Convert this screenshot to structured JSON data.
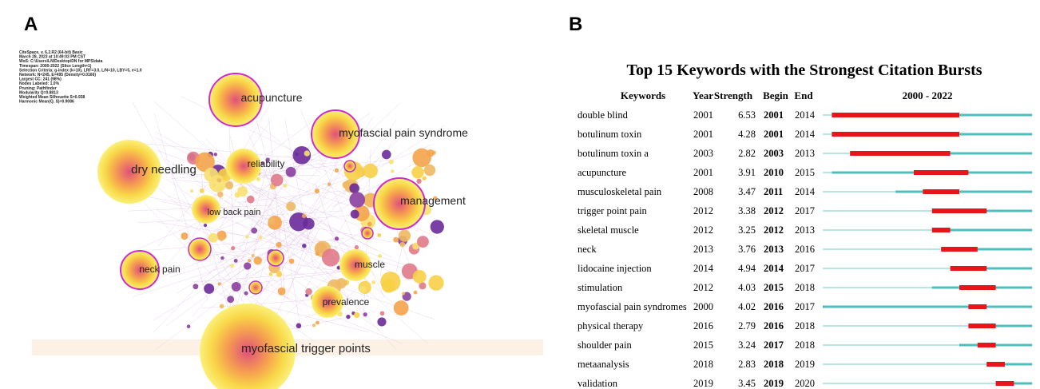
{
  "panels": {
    "a": "A",
    "b": "B"
  },
  "network": {
    "info": [
      "CiteSpace, v. 6.2.R2 (64-bit) Basic",
      "March 28, 2023 at 10:49:03 PM CST",
      "WoS: C:\\Users\\LN\\Desktop\\DN for MPS\\data",
      "Timespan: 2000-2022 (Slice Length=1)",
      "Selection Criteria: g-index (k=10), LRF=3.0, L/N=10, LBY=5, e=1.0",
      "Network: N=245, E=495 (Density=0.0166)",
      "Largest CC: 241 (98%)",
      "Nodes Labeled: 1.0%",
      "Pruning: Pathfinder",
      "Modularity Q=0.8813",
      "Weighted Mean Silhouette S=0.938",
      "Harmonic Mean(Q, S)=0.9086"
    ],
    "labels": [
      "acupuncture",
      "myofascial pain syndrome",
      "dry needling",
      "reliability",
      "management",
      "low back pain",
      "neck pain",
      "muscle",
      "prevalence",
      "myofascial trigger points"
    ]
  },
  "burst": {
    "title": "Top 15 Keywords with the Strongest Citation Bursts",
    "columns": [
      "Keywords",
      "Year",
      "Strength",
      "Begin",
      "End"
    ],
    "range_label": "2000 - 2022",
    "xlim": [
      2000,
      2022
    ],
    "rows": [
      [
        "double blind",
        2001,
        6.53,
        2001,
        2014
      ],
      [
        "botulinum toxin",
        2001,
        4.28,
        2001,
        2014
      ],
      [
        "botulinum toxin a",
        2003,
        2.82,
        2003,
        2013
      ],
      [
        "acupuncture",
        2001,
        3.91,
        2010,
        2015
      ],
      [
        "musculoskeletal pain",
        2008,
        3.47,
        2011,
        2014
      ],
      [
        "trigger point pain",
        2012,
        3.38,
        2012,
        2017
      ],
      [
        "skeletal muscle",
        2012,
        3.25,
        2012,
        2013
      ],
      [
        "neck",
        2013,
        3.76,
        2013,
        2016
      ],
      [
        "lidocaine injection",
        2014,
        4.94,
        2014,
        2017
      ],
      [
        "stimulation",
        2012,
        4.03,
        2015,
        2018
      ],
      [
        "myofascial pain syndromes",
        2000,
        4.02,
        2016,
        2017
      ],
      [
        "physical therapy",
        2016,
        2.79,
        2016,
        2018
      ],
      [
        "shoulder pain",
        2015,
        3.24,
        2017,
        2018
      ],
      [
        "metaanalysis",
        2018,
        2.83,
        2018,
        2019
      ],
      [
        "validation",
        2019,
        3.45,
        2019,
        2020
      ]
    ]
  }
}
